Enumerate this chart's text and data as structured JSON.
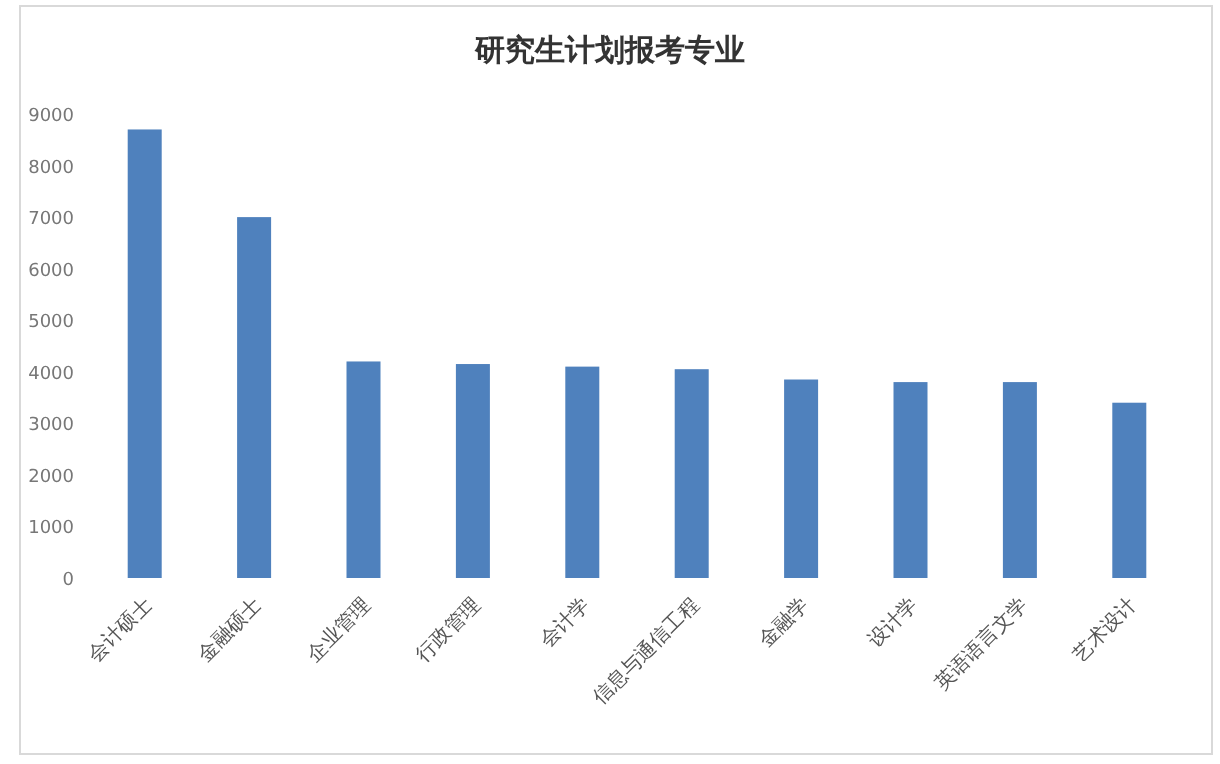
{
  "chart_data": {
    "type": "bar",
    "title": "研究生计划报考专业",
    "categories": [
      "会计硕士",
      "金融硕士",
      "企业管理",
      "行政管理",
      "会计学",
      "信息与通信工程",
      "金融学",
      "设计学",
      "英语语言文学",
      "艺术设计"
    ],
    "values": [
      8700,
      7000,
      4200,
      4150,
      4100,
      4050,
      3850,
      3800,
      3800,
      3400
    ],
    "color": "#4f81bd",
    "ylim": [
      0,
      9000
    ],
    "yticks": [
      0,
      1000,
      2000,
      3000,
      4000,
      5000,
      6000,
      7000,
      8000,
      9000
    ],
    "grid": false
  }
}
